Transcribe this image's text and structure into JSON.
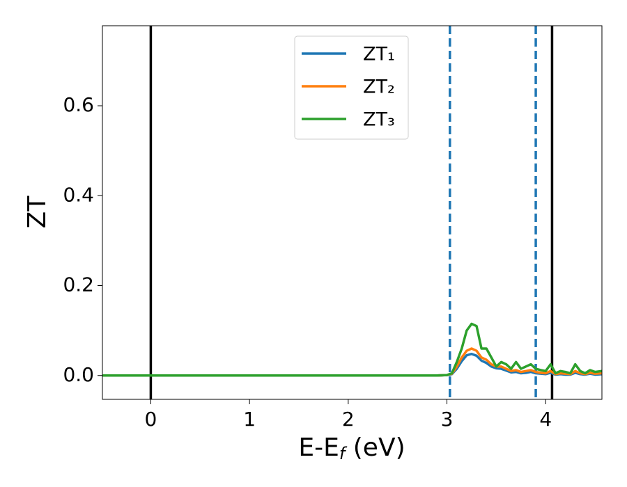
{
  "chart_data": {
    "type": "line",
    "xlabel": {
      "main": "E-E",
      "sub": "f",
      "rest": " (eV)"
    },
    "ylabel": "ZT",
    "xlim": [
      -0.49,
      4.57
    ],
    "ylim": [
      -0.053,
      0.778
    ],
    "xticks": [
      0,
      1,
      2,
      3,
      4
    ],
    "yticks": [
      {
        "value": 0,
        "label": "0.0"
      },
      0.2,
      0.4,
      0.6
    ],
    "legend": "upper center",
    "x": [
      -0.49,
      0,
      1,
      2,
      2.9,
      3.0,
      3.05,
      3.1,
      3.15,
      3.2,
      3.25,
      3.3,
      3.35,
      3.4,
      3.45,
      3.5,
      3.55,
      3.6,
      3.65,
      3.7,
      3.75,
      3.8,
      3.85,
      3.9,
      3.95,
      4.0,
      4.05,
      4.1,
      4.15,
      4.2,
      4.25,
      4.3,
      4.35,
      4.4,
      4.45,
      4.5,
      4.57
    ],
    "series": [
      {
        "name": "ZT₁",
        "color": "#1f77b4",
        "values": [
          0,
          0,
          0,
          0,
          0,
          0.001,
          0.003,
          0.015,
          0.032,
          0.045,
          0.048,
          0.044,
          0.033,
          0.028,
          0.02,
          0.016,
          0.015,
          0.011,
          0.007,
          0.008,
          0.005,
          0.006,
          0.008,
          0.005,
          0.004,
          0.003,
          0.006,
          0.002,
          0.003,
          0.002,
          0.002,
          0.006,
          0.003,
          0.002,
          0.004,
          0.002,
          0.003
        ]
      },
      {
        "name": "ZT₂",
        "color": "#ff7f0e",
        "values": [
          0,
          0,
          0,
          0,
          0,
          0.001,
          0.004,
          0.02,
          0.04,
          0.055,
          0.06,
          0.055,
          0.04,
          0.035,
          0.025,
          0.02,
          0.02,
          0.015,
          0.01,
          0.012,
          0.008,
          0.01,
          0.012,
          0.008,
          0.006,
          0.005,
          0.01,
          0.003,
          0.005,
          0.004,
          0.003,
          0.01,
          0.005,
          0.003,
          0.006,
          0.004,
          0.005
        ]
      },
      {
        "name": "ZT₃",
        "color": "#2ca02c",
        "values": [
          0,
          0,
          0,
          0,
          0,
          0.001,
          0.005,
          0.03,
          0.06,
          0.1,
          0.115,
          0.11,
          0.06,
          0.06,
          0.04,
          0.02,
          0.03,
          0.025,
          0.015,
          0.03,
          0.015,
          0.02,
          0.025,
          0.015,
          0.012,
          0.01,
          0.025,
          0.005,
          0.01,
          0.008,
          0.005,
          0.025,
          0.01,
          0.005,
          0.012,
          0.008,
          0.01
        ]
      }
    ],
    "vlines": [
      {
        "x": 0,
        "color": "#000000",
        "style": "solid"
      },
      {
        "x": 3.03,
        "color": "#1f77b4",
        "style": "dashed"
      },
      {
        "x": 3.9,
        "color": "#1f77b4",
        "style": "dashed"
      },
      {
        "x": 4.065,
        "color": "#000000",
        "style": "solid"
      }
    ]
  }
}
